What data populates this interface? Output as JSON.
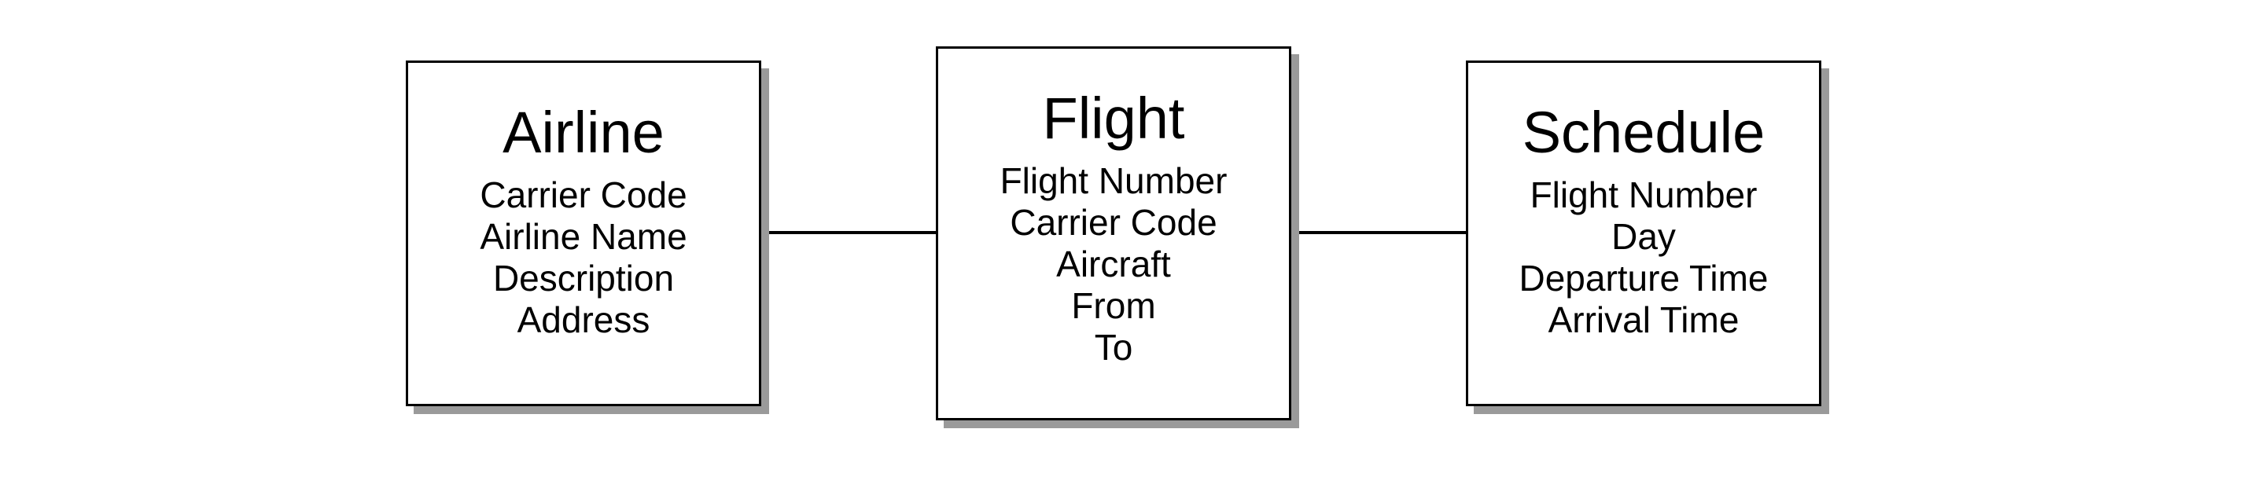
{
  "entities": {
    "airline": {
      "title": "Airline",
      "fields": [
        "Carrier Code",
        "Airline Name",
        "Description",
        "Address"
      ]
    },
    "flight": {
      "title": "Flight",
      "fields": [
        "Flight Number",
        "Carrier Code",
        "Aircraft",
        "From",
        "To"
      ]
    },
    "schedule": {
      "title": "Schedule",
      "fields": [
        "Flight Number",
        "Day",
        "Departure Time",
        "Arrival Time"
      ]
    }
  },
  "relationships": [
    {
      "from": "Airline",
      "to": "Flight"
    },
    {
      "from": "Flight",
      "to": "Schedule"
    }
  ],
  "colors": {
    "border": "#000000",
    "shadow": "#9a9a9a",
    "background": "#ffffff"
  }
}
